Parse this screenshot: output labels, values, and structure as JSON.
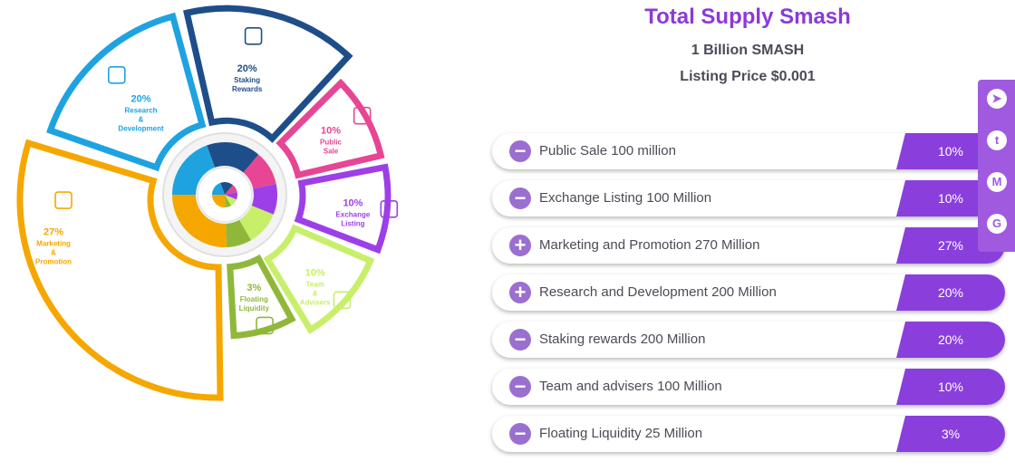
{
  "header": {
    "title": "Total Supply Smash",
    "supply": "1 Billion SMASH",
    "listing_price": "Listing Price $0.001"
  },
  "segments": [
    {
      "pct": "20%",
      "label_lines": [
        "Staking",
        "Rewards"
      ],
      "color": "#1e4e8a",
      "icon": "hands-coin-icon"
    },
    {
      "pct": "10%",
      "label_lines": [
        "Public",
        "Sale"
      ],
      "color": "#e64694",
      "icon": "people-group-icon"
    },
    {
      "pct": "10%",
      "label_lines": [
        "Exchange",
        "Listing"
      ],
      "color": "#9d3fe8",
      "icon": "chart-board-icon"
    },
    {
      "pct": "10%",
      "label_lines": [
        "Team",
        "&",
        "Advisers"
      ],
      "color": "#c8ef6a",
      "icon": "team-icon"
    },
    {
      "pct": "3%",
      "label_lines": [
        "Floating",
        "Liquidity"
      ],
      "color": "#8fb83a",
      "icon": "hand-dollar-icon"
    },
    {
      "pct": "27%",
      "label_lines": [
        "Marketing",
        "&",
        "Promotion"
      ],
      "color": "#f5a700",
      "icon": "presentation-icon"
    },
    {
      "pct": "20%",
      "label_lines": [
        "Research",
        "&",
        "Development"
      ],
      "color": "#1ea3e0",
      "icon": "document-search-icon"
    }
  ],
  "allocations": [
    {
      "label": "Public Sale 100 million",
      "pct": "10%",
      "state": "expanded",
      "symbol": "−"
    },
    {
      "label": "Exchange Listing 100 Million",
      "pct": "10%",
      "state": "expanded",
      "symbol": "−"
    },
    {
      "label": "Marketing and Promotion 270 Million",
      "pct": "27%",
      "state": "collapsed",
      "symbol": "+"
    },
    {
      "label": "Research and Development 200 Million",
      "pct": "20%",
      "state": "collapsed",
      "symbol": "+"
    },
    {
      "label": "Staking rewards 200 Million",
      "pct": "20%",
      "state": "expanded",
      "symbol": "−"
    },
    {
      "label": "Team and advisers 100 Million",
      "pct": "10%",
      "state": "expanded",
      "symbol": "−"
    },
    {
      "label": "Floating Liquidity 25 Million",
      "pct": "3%",
      "state": "expanded",
      "symbol": "−"
    }
  ],
  "social": [
    {
      "name": "telegram-icon",
      "glyph": "➤"
    },
    {
      "name": "twitter-icon",
      "glyph": "t"
    },
    {
      "name": "medium-icon",
      "glyph": "M"
    },
    {
      "name": "github-icon",
      "glyph": "G"
    }
  ]
}
